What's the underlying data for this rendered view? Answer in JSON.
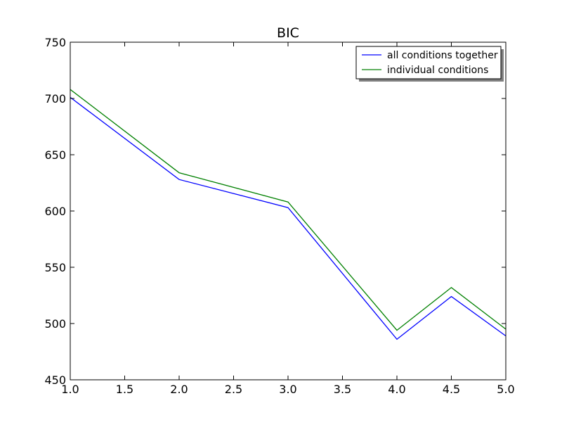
{
  "chart_data": {
    "type": "line",
    "title": "BIC",
    "xlabel": "",
    "ylabel": "",
    "xlim": [
      1.0,
      5.0
    ],
    "ylim": [
      450,
      750
    ],
    "x_ticks": [
      "1.0",
      "1.5",
      "2.0",
      "2.5",
      "3.0",
      "3.5",
      "4.0",
      "4.5",
      "5.0"
    ],
    "y_ticks": [
      "450",
      "500",
      "550",
      "600",
      "650",
      "700",
      "750"
    ],
    "x": [
      1.0,
      2.0,
      3.0,
      4.0,
      4.5,
      5.0
    ],
    "series": [
      {
        "name": "all conditions together",
        "color": "#0000ff",
        "values": [
          701,
          628,
          603,
          486,
          524,
          489
        ]
      },
      {
        "name": "individual conditions",
        "color": "#008000",
        "values": [
          708,
          634,
          608,
          494,
          532,
          495
        ]
      }
    ],
    "grid": false,
    "legend_position": "top-right"
  }
}
